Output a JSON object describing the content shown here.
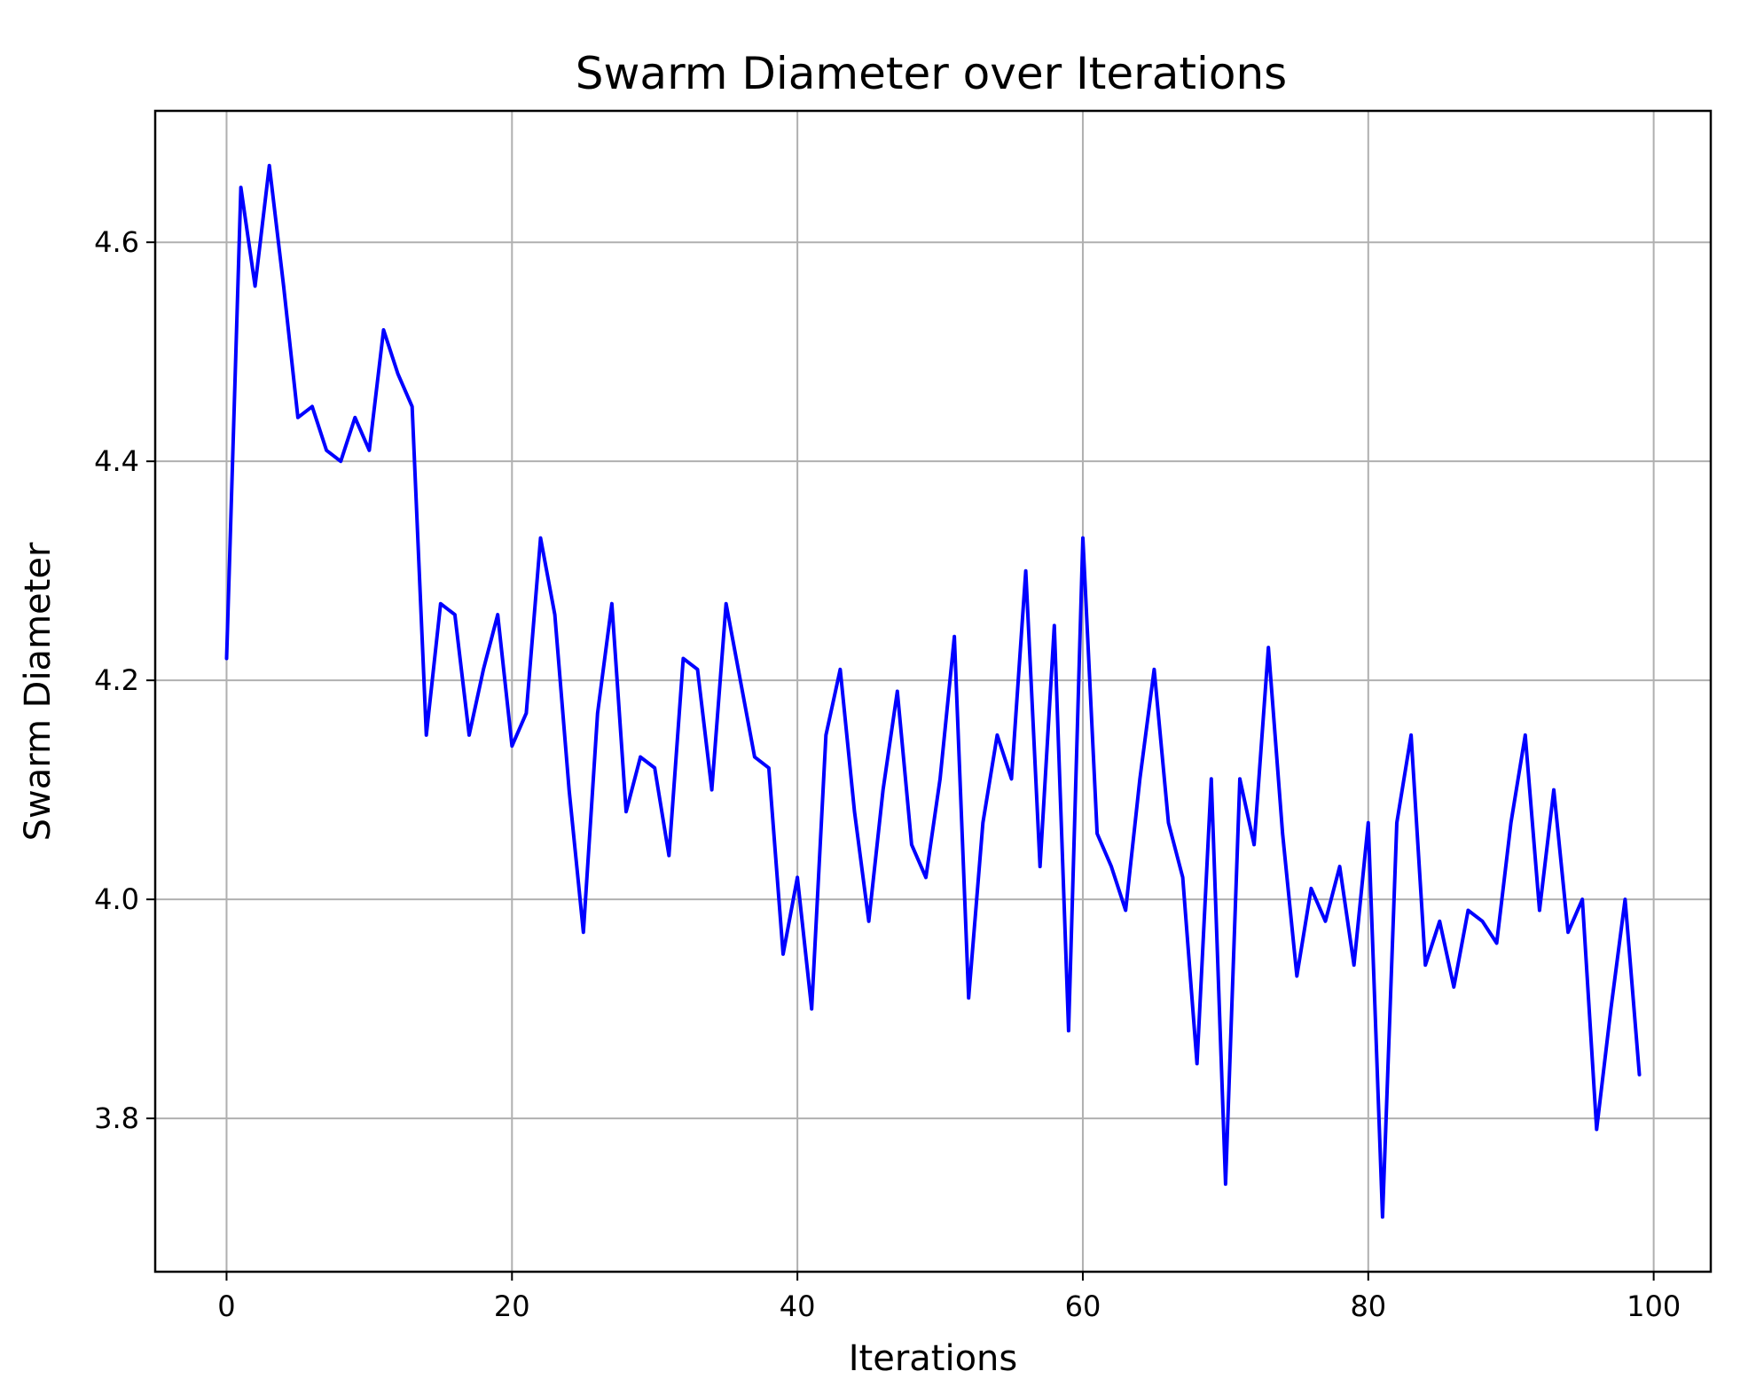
{
  "chart_data": {
    "type": "line",
    "title": "Swarm Diameter over Iterations",
    "xlabel": "Iterations",
    "ylabel": "Swarm Diameter",
    "xlim": [
      -5,
      104
    ],
    "ylim": [
      3.66,
      4.72
    ],
    "xticks": [
      0,
      20,
      40,
      60,
      80,
      100
    ],
    "xtick_labels": [
      "0",
      "20",
      "40",
      "60",
      "80",
      "100"
    ],
    "yticks": [
      3.8,
      4.0,
      4.2,
      4.4,
      4.6
    ],
    "ytick_labels": [
      "3.8",
      "4.0",
      "4.2",
      "4.4",
      "4.6"
    ],
    "grid": true,
    "legend": "none",
    "series": [
      {
        "color": "#0000ff",
        "x": [
          0,
          1,
          2,
          3,
          4,
          5,
          6,
          7,
          8,
          9,
          10,
          11,
          12,
          13,
          14,
          15,
          16,
          17,
          18,
          19,
          20,
          21,
          22,
          23,
          24,
          25,
          26,
          27,
          28,
          29,
          30,
          31,
          32,
          33,
          34,
          35,
          36,
          37,
          38,
          39,
          40,
          41,
          42,
          43,
          44,
          45,
          46,
          47,
          48,
          49,
          50,
          51,
          52,
          53,
          54,
          55,
          56,
          57,
          58,
          59,
          60,
          61,
          62,
          63,
          64,
          65,
          66,
          67,
          68,
          69,
          70,
          71,
          72,
          73,
          74,
          75,
          76,
          77,
          78,
          79,
          80,
          81,
          82,
          83,
          84,
          85,
          86,
          87,
          88,
          89,
          90,
          91,
          92,
          93,
          94,
          95,
          96,
          97,
          98,
          99
        ],
        "y": [
          4.22,
          4.65,
          4.56,
          4.67,
          4.56,
          4.44,
          4.45,
          4.41,
          4.4,
          4.44,
          4.41,
          4.52,
          4.48,
          4.45,
          4.15,
          4.27,
          4.26,
          4.15,
          4.21,
          4.26,
          4.14,
          4.17,
          4.33,
          4.26,
          4.1,
          3.97,
          4.17,
          4.27,
          4.08,
          4.13,
          4.12,
          4.04,
          4.22,
          4.21,
          4.1,
          4.27,
          4.2,
          4.13,
          4.12,
          3.95,
          4.02,
          3.9,
          4.15,
          4.21,
          4.08,
          3.98,
          4.1,
          4.19,
          4.05,
          4.02,
          4.11,
          4.24,
          3.91,
          4.07,
          4.15,
          4.11,
          4.3,
          4.03,
          4.25,
          3.88,
          4.33,
          4.06,
          4.03,
          3.99,
          4.11,
          4.21,
          4.07,
          4.02,
          3.85,
          4.11,
          3.74,
          4.11,
          4.05,
          4.23,
          4.06,
          3.93,
          4.01,
          3.98,
          4.03,
          3.94,
          4.07,
          3.71,
          4.07,
          4.15,
          3.94,
          3.98,
          3.92,
          3.99,
          3.98,
          3.96,
          4.07,
          4.15,
          3.99,
          4.1,
          3.97,
          4.0,
          3.79,
          3.9,
          4.0,
          3.84
        ]
      }
    ]
  }
}
